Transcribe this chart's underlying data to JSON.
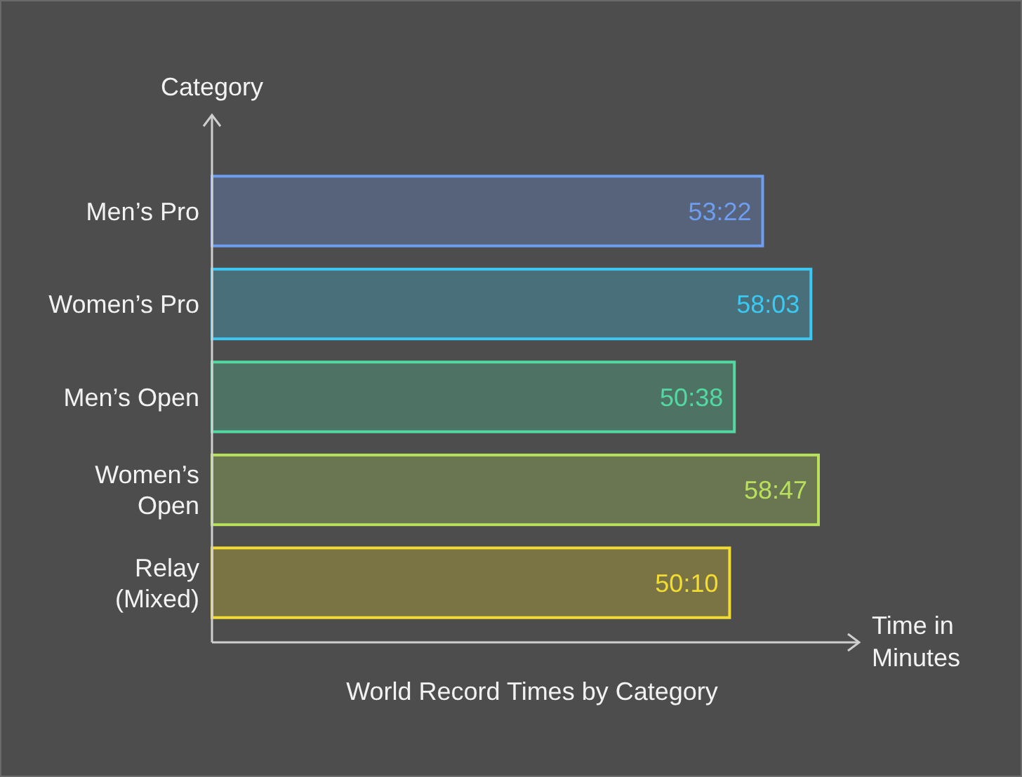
{
  "chart_data": {
    "type": "bar",
    "orientation": "horizontal",
    "title": "World Record Times by Category",
    "ylabel": "Category",
    "xlabel": "Time in Minutes",
    "categories": [
      "Men’s Pro",
      "Women’s Pro",
      "Men’s Open",
      "Women’s Open",
      "Relay (Mixed)"
    ],
    "values": [
      53.37,
      58.05,
      50.63,
      58.78,
      50.17
    ],
    "value_labels": [
      "53:22",
      "58:03",
      "50:38",
      "58:47",
      "50:10"
    ],
    "colors": [
      "#6e9ef2",
      "#3cc8f2",
      "#52d8a2",
      "#b8e05c",
      "#f2dc32"
    ]
  }
}
